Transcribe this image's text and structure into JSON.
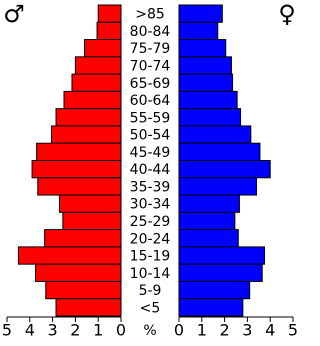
{
  "chart_data": {
    "type": "population_pyramid",
    "categories": [
      ">85",
      "80-84",
      "75-79",
      "70-74",
      "65-69",
      "60-64",
      "55-59",
      "50-54",
      "45-49",
      "40-44",
      "35-39",
      "30-34",
      "25-29",
      "20-24",
      "15-19",
      "10-14",
      "5-9",
      "<5"
    ],
    "series": [
      {
        "name": "♂",
        "color": "#ff0000",
        "values": [
          1.0,
          1.05,
          1.6,
          2.0,
          2.15,
          2.5,
          2.85,
          3.05,
          3.7,
          3.9,
          3.65,
          2.7,
          2.55,
          3.35,
          4.5,
          3.75,
          3.3,
          2.85
        ]
      },
      {
        "name": "♀",
        "color": "#0000ff",
        "values": [
          1.9,
          1.7,
          2.05,
          2.3,
          2.35,
          2.55,
          2.7,
          3.15,
          3.55,
          4.0,
          3.4,
          2.65,
          2.45,
          2.6,
          3.75,
          3.65,
          3.1,
          2.8
        ]
      }
    ],
    "x_label": "%",
    "xlim": [
      0,
      5
    ],
    "xticks": [
      5,
      4,
      3,
      2,
      1,
      0
    ]
  }
}
